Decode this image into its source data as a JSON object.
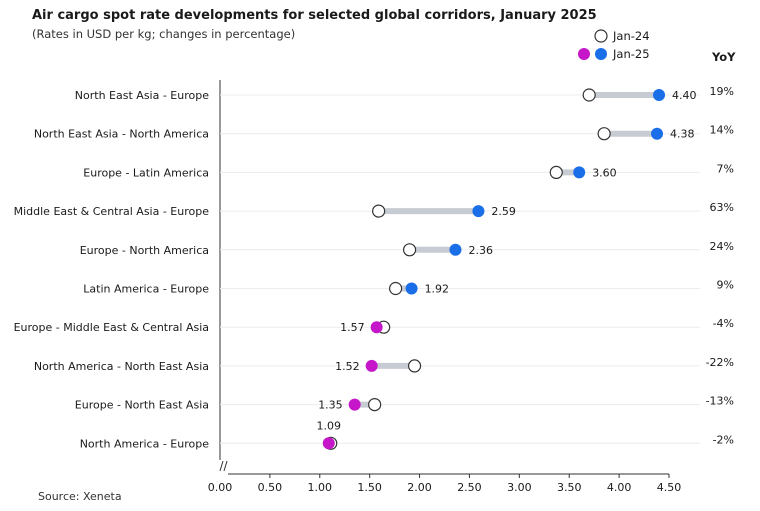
{
  "chart_data": {
    "type": "dumbbell",
    "title": "Air cargo spot rate developments for selected global corridors, January 2025",
    "subtitle": "(Rates in USD per kg; changes in percentage)",
    "source": "Source: Xeneta",
    "legend": {
      "prev_label": "Jan-24",
      "curr_label": "Jan-25",
      "placement": "top-right"
    },
    "yoy_header": "YoY",
    "xlim": [
      0,
      4.5
    ],
    "x_ticks": [
      "0.00",
      "0.50",
      "1.00",
      "1.50",
      "2.00",
      "2.50",
      "3.00",
      "3.50",
      "4.00",
      "4.50"
    ],
    "colors": {
      "increase": "#1a6fe8",
      "decrease": "#c516c9",
      "bar": "#c7ccd3",
      "grid": "#ececec"
    },
    "series": [
      {
        "category": "North East Asia - Europe",
        "jan24": 3.7,
        "jan25": 4.4,
        "label": "4.40",
        "yoy": "19%"
      },
      {
        "category": "North East Asia - North America",
        "jan24": 3.85,
        "jan25": 4.38,
        "label": "4.38",
        "yoy": "14%"
      },
      {
        "category": "Europe - Latin America",
        "jan24": 3.37,
        "jan25": 3.6,
        "label": "3.60",
        "yoy": "7%"
      },
      {
        "category": "Middle East & Central Asia - Europe",
        "jan24": 1.59,
        "jan25": 2.59,
        "label": "2.59",
        "yoy": "63%"
      },
      {
        "category": "Europe - North America",
        "jan24": 1.9,
        "jan25": 2.36,
        "label": "2.36",
        "yoy": "24%"
      },
      {
        "category": "Latin America - Europe",
        "jan24": 1.76,
        "jan25": 1.92,
        "label": "1.92",
        "yoy": "9%"
      },
      {
        "category": "Europe - Middle East & Central Asia",
        "jan24": 1.64,
        "jan25": 1.57,
        "label": "1.57",
        "yoy": "-4%"
      },
      {
        "category": "North America - North East Asia",
        "jan24": 1.95,
        "jan25": 1.52,
        "label": "1.52",
        "yoy": "-22%"
      },
      {
        "category": "Europe - North East Asia",
        "jan24": 1.55,
        "jan25": 1.35,
        "label": "1.35",
        "yoy": "-13%"
      },
      {
        "category": "North America - Europe",
        "jan24": 1.11,
        "jan25": 1.09,
        "label": "1.09",
        "yoy": "-2%"
      }
    ]
  }
}
